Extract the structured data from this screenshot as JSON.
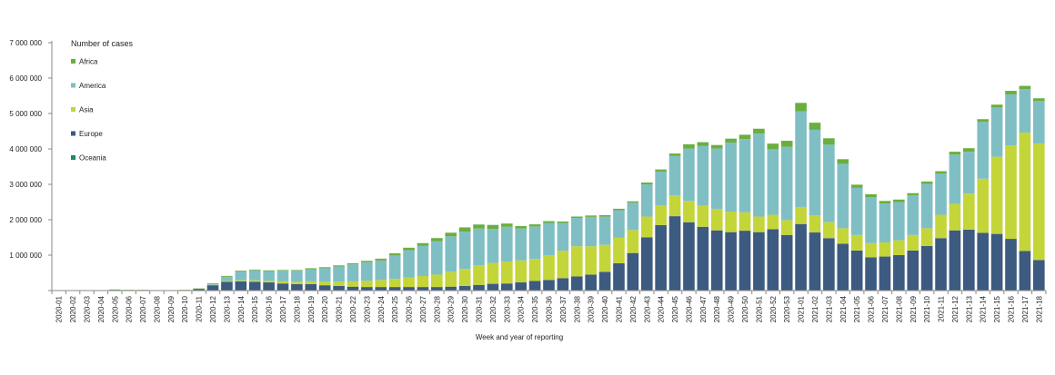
{
  "chart_data": {
    "type": "bar",
    "stacked": true,
    "title": "",
    "xlabel": "Week and year of reporting",
    "ylabel": "",
    "ylim": [
      0,
      7000000
    ],
    "y_ticks": [
      0,
      1000000,
      2000000,
      3000000,
      4000000,
      5000000,
      6000000,
      7000000
    ],
    "y_tick_labels": [
      "",
      "1 000 000",
      "2 000 000",
      "3 000 000",
      "4 000 000",
      "5 000 000",
      "6 000 000",
      "7 000 000"
    ],
    "grid": false,
    "legend_title": "Number of cases",
    "legend_position": "top-left",
    "categories": [
      "2020-01",
      "2020-02",
      "2020-03",
      "2020-04",
      "2020-05",
      "2020-06",
      "2020-07",
      "2020-08",
      "2020-09",
      "2020-10",
      "2020-11",
      "2020-12",
      "2020-13",
      "2020-14",
      "2020-15",
      "2020-16",
      "2020-17",
      "2020-18",
      "2020-19",
      "2020-20",
      "2020-21",
      "2020-22",
      "2020-23",
      "2020-24",
      "2020-25",
      "2020-26",
      "2020-27",
      "2020-28",
      "2020-29",
      "2020-30",
      "2020-31",
      "2020-32",
      "2020-33",
      "2020-34",
      "2020-35",
      "2020-36",
      "2020-37",
      "2020-38",
      "2020-39",
      "2020-40",
      "2020-41",
      "2020-42",
      "2020-43",
      "2020-44",
      "2020-45",
      "2020-46",
      "2020-47",
      "2020-48",
      "2020-49",
      "2020-50",
      "2020-51",
      "2020-52",
      "2020-53",
      "2021-01",
      "2021-02",
      "2021-03",
      "2021-04",
      "2021-05",
      "2021-06",
      "2021-07",
      "2021-08",
      "2021-09",
      "2021-10",
      "2021-11",
      "2021-12",
      "2021-13",
      "2021-14",
      "2021-15",
      "2021-16",
      "2021-17",
      "2021-18"
    ],
    "series": [
      {
        "name": "Europe",
        "color": "#3d5a80",
        "values": [
          0,
          0,
          0,
          0,
          0,
          0,
          0,
          0,
          0,
          0,
          40000,
          150000,
          250000,
          260000,
          250000,
          230000,
          200000,
          180000,
          180000,
          150000,
          130000,
          110000,
          100000,
          100000,
          100000,
          100000,
          100000,
          100000,
          110000,
          130000,
          160000,
          190000,
          200000,
          230000,
          270000,
          300000,
          350000,
          400000,
          450000,
          530000,
          770000,
          1060000,
          1500000,
          1850000,
          2100000,
          1930000,
          1800000,
          1700000,
          1650000,
          1690000,
          1650000,
          1730000,
          1570000,
          1880000,
          1640000,
          1480000,
          1320000,
          1130000,
          940000,
          960000,
          1000000,
          1130000,
          1260000,
          1480000,
          1700000,
          1720000,
          1630000,
          1600000,
          1460000,
          1120000,
          860000
        ]
      },
      {
        "name": "Asia",
        "color": "#c4d53a",
        "values": [
          0,
          0,
          0,
          0,
          0,
          0,
          0,
          0,
          0,
          0,
          0,
          10000,
          20000,
          30000,
          40000,
          50000,
          60000,
          70000,
          80000,
          100000,
          120000,
          150000,
          180000,
          200000,
          230000,
          270000,
          310000,
          350000,
          420000,
          480000,
          550000,
          590000,
          620000,
          620000,
          620000,
          700000,
          770000,
          850000,
          800000,
          760000,
          720000,
          650000,
          590000,
          550000,
          590000,
          600000,
          610000,
          600000,
          580000,
          520000,
          440000,
          410000,
          420000,
          480000,
          480000,
          450000,
          440000,
          440000,
          400000,
          400000,
          420000,
          440000,
          500000,
          660000,
          750000,
          1020000,
          1530000,
          2180000,
          2640000,
          3340000,
          3290000
        ]
      },
      {
        "name": "America",
        "color": "#7fbfc4",
        "values": [
          0,
          0,
          0,
          0,
          0,
          0,
          0,
          0,
          0,
          0,
          0,
          20000,
          120000,
          250000,
          280000,
          270000,
          300000,
          310000,
          340000,
          380000,
          430000,
          480000,
          520000,
          550000,
          660000,
          770000,
          850000,
          940000,
          1000000,
          1050000,
          1040000,
          960000,
          980000,
          900000,
          920000,
          910000,
          790000,
          800000,
          830000,
          800000,
          780000,
          770000,
          910000,
          960000,
          1110000,
          1480000,
          1670000,
          1710000,
          1950000,
          2070000,
          2340000,
          1850000,
          2070000,
          2700000,
          2420000,
          2190000,
          1820000,
          1330000,
          1300000,
          1100000,
          1080000,
          1120000,
          1250000,
          1160000,
          1390000,
          1180000,
          1600000,
          1390000,
          1440000,
          1230000,
          1200000
        ]
      },
      {
        "name": "Africa",
        "color": "#6aaf3d",
        "values": [
          0,
          0,
          0,
          0,
          30000,
          20000,
          20000,
          10000,
          10000,
          20000,
          20000,
          20000,
          20000,
          20000,
          20000,
          20000,
          20000,
          20000,
          30000,
          30000,
          30000,
          30000,
          40000,
          50000,
          60000,
          70000,
          80000,
          90000,
          100000,
          120000,
          110000,
          110000,
          90000,
          70000,
          60000,
          50000,
          40000,
          40000,
          40000,
          40000,
          40000,
          40000,
          50000,
          60000,
          70000,
          120000,
          110000,
          100000,
          110000,
          120000,
          140000,
          160000,
          170000,
          240000,
          200000,
          180000,
          130000,
          90000,
          80000,
          70000,
          70000,
          60000,
          70000,
          70000,
          80000,
          100000,
          80000,
          80000,
          100000,
          90000,
          80000
        ]
      },
      {
        "name": "Oceania",
        "color": "#1a8a6a",
        "values": [
          0,
          0,
          0,
          0,
          0,
          0,
          0,
          0,
          0,
          0,
          0,
          2000,
          3000,
          2000,
          1000,
          500,
          0,
          0,
          0,
          0,
          0,
          0,
          0,
          0,
          0,
          0,
          0,
          2000,
          3000,
          4000,
          4000,
          3000,
          2000,
          1000,
          0,
          0,
          0,
          0,
          0,
          0,
          0,
          0,
          0,
          0,
          0,
          0,
          0,
          0,
          0,
          0,
          0,
          0,
          0,
          0,
          0,
          0,
          0,
          0,
          0,
          0,
          0,
          0,
          0,
          0,
          0,
          0,
          0,
          0,
          0,
          0,
          0
        ]
      }
    ],
    "legend_order": [
      "Africa",
      "America",
      "Asia",
      "Europe",
      "Oceania"
    ]
  }
}
